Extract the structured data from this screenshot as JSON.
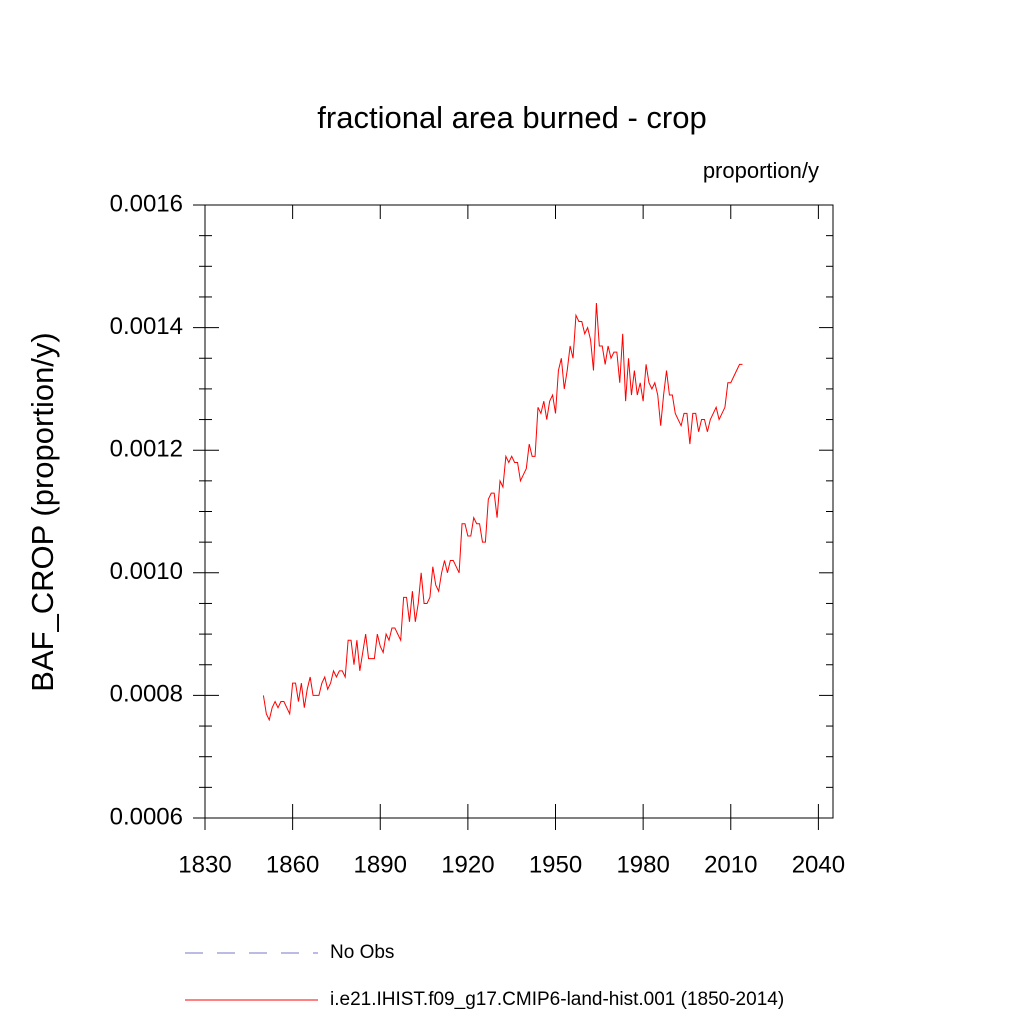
{
  "chart_data": {
    "type": "line",
    "title": "fractional area burned - crop",
    "units": "proportion/y",
    "ylabel": "BAF_CROP  (proportion/y)",
    "xlim": [
      1830,
      2045
    ],
    "xticks": [
      1830,
      1860,
      1890,
      1920,
      1950,
      1980,
      2010,
      2040
    ],
    "ylim": [
      0.0006,
      0.0016
    ],
    "yticks": [
      0.0006,
      0.0008,
      {
        "value": 0.001,
        "label": "0.0010"
      },
      0.0012,
      0.0014,
      0.0016
    ],
    "yminorticks": [
      0.00065,
      0.0007,
      0.00075,
      0.00085,
      0.0009,
      0.00095,
      0.00105,
      0.0011,
      0.00115,
      0.00125,
      0.0013,
      0.00135,
      0.00145,
      0.0015,
      0.00155
    ],
    "x": [
      1850,
      1851,
      1852,
      1853,
      1854,
      1855,
      1856,
      1857,
      1858,
      1859,
      1860,
      1861,
      1862,
      1863,
      1864,
      1865,
      1866,
      1867,
      1868,
      1869,
      1870,
      1871,
      1872,
      1873,
      1874,
      1875,
      1876,
      1877,
      1878,
      1879,
      1880,
      1881,
      1882,
      1883,
      1884,
      1885,
      1886,
      1887,
      1888,
      1889,
      1890,
      1891,
      1892,
      1893,
      1894,
      1895,
      1896,
      1897,
      1898,
      1899,
      1900,
      1901,
      1902,
      1903,
      1904,
      1905,
      1906,
      1907,
      1908,
      1909,
      1910,
      1911,
      1912,
      1913,
      1914,
      1915,
      1916,
      1917,
      1918,
      1919,
      1920,
      1921,
      1922,
      1923,
      1924,
      1925,
      1926,
      1927,
      1928,
      1929,
      1930,
      1931,
      1932,
      1933,
      1934,
      1935,
      1936,
      1937,
      1938,
      1939,
      1940,
      1941,
      1942,
      1943,
      1944,
      1945,
      1946,
      1947,
      1948,
      1949,
      1950,
      1951,
      1952,
      1953,
      1954,
      1955,
      1956,
      1957,
      1958,
      1959,
      1960,
      1961,
      1962,
      1963,
      1964,
      1965,
      1966,
      1967,
      1968,
      1969,
      1970,
      1971,
      1972,
      1973,
      1974,
      1975,
      1976,
      1977,
      1978,
      1979,
      1980,
      1981,
      1982,
      1983,
      1984,
      1985,
      1986,
      1987,
      1988,
      1989,
      1990,
      1991,
      1992,
      1993,
      1994,
      1995,
      1996,
      1997,
      1998,
      1999,
      2000,
      2001,
      2002,
      2003,
      2004,
      2005,
      2006,
      2007,
      2008,
      2009,
      2010,
      2011,
      2012,
      2013,
      2014
    ],
    "series": [
      {
        "name": "i.e21.IHIST.f09_g17.CMIP6-land-hist.001 (1850-2014)",
        "color": "#ff0000",
        "values": [
          0.0008,
          0.00077,
          0.00076,
          0.00078,
          0.00079,
          0.00078,
          0.00079,
          0.00079,
          0.00078,
          0.00077,
          0.00082,
          0.00082,
          0.00079,
          0.00082,
          0.00078,
          0.00081,
          0.00083,
          0.0008,
          0.0008,
          0.0008,
          0.00082,
          0.00083,
          0.00081,
          0.00082,
          0.00084,
          0.00083,
          0.00084,
          0.00084,
          0.00083,
          0.00089,
          0.00089,
          0.00085,
          0.00089,
          0.00084,
          0.00087,
          0.0009,
          0.00086,
          0.00086,
          0.00086,
          0.0009,
          0.00088,
          0.00087,
          0.0009,
          0.00089,
          0.00091,
          0.00091,
          0.0009,
          0.00089,
          0.00096,
          0.00096,
          0.00092,
          0.00097,
          0.00092,
          0.00095,
          0.001,
          0.00095,
          0.00095,
          0.00096,
          0.00101,
          0.00098,
          0.00097,
          0.001,
          0.00102,
          0.001,
          0.00102,
          0.00102,
          0.00101,
          0.001,
          0.00108,
          0.00108,
          0.00106,
          0.00106,
          0.00109,
          0.00108,
          0.00108,
          0.00105,
          0.00105,
          0.00112,
          0.00113,
          0.00113,
          0.00109,
          0.00115,
          0.00114,
          0.00119,
          0.00118,
          0.00119,
          0.00118,
          0.00118,
          0.00115,
          0.00116,
          0.00117,
          0.00121,
          0.00119,
          0.00119,
          0.00127,
          0.00126,
          0.00128,
          0.00125,
          0.00128,
          0.00129,
          0.00126,
          0.00133,
          0.00135,
          0.0013,
          0.00133,
          0.00137,
          0.00135,
          0.00142,
          0.00141,
          0.00141,
          0.00139,
          0.0014,
          0.00138,
          0.00133,
          0.00144,
          0.00137,
          0.00137,
          0.00134,
          0.00137,
          0.00135,
          0.00136,
          0.00136,
          0.00131,
          0.00139,
          0.00128,
          0.00135,
          0.00129,
          0.00133,
          0.00129,
          0.00131,
          0.00128,
          0.00134,
          0.00131,
          0.0013,
          0.00131,
          0.00129,
          0.00124,
          0.00129,
          0.00133,
          0.00129,
          0.00129,
          0.00126,
          0.00125,
          0.00124,
          0.00126,
          0.00126,
          0.00121,
          0.00126,
          0.00126,
          0.00123,
          0.00125,
          0.00125,
          0.00123,
          0.00125,
          0.00126,
          0.00127,
          0.00125,
          0.00126,
          0.00127,
          0.00131,
          0.00131,
          0.00132,
          0.00133,
          0.00134,
          0.00134
        ]
      }
    ],
    "extra_legend": {
      "name": "No Obs",
      "color": "#7777cc",
      "style": "dashed"
    }
  }
}
